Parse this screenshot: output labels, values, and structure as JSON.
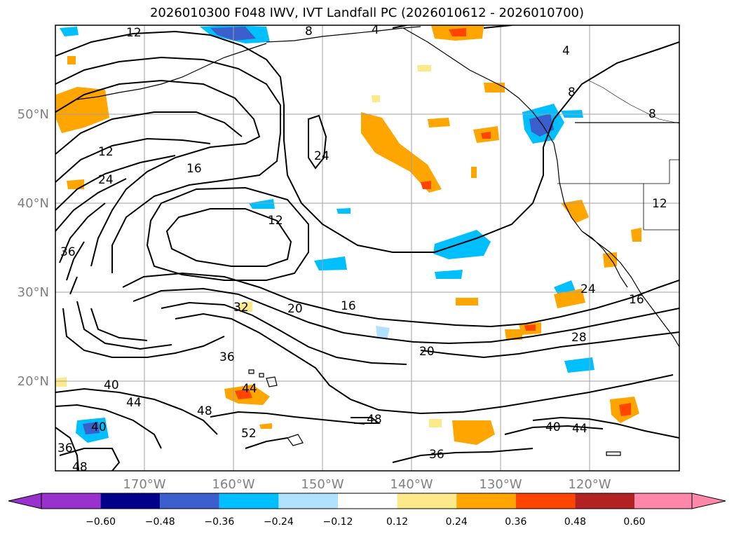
{
  "figure": {
    "title": "2026010300 F048 IWV, IVT Landfall PC (2026010612 - 2026010700)"
  },
  "axes": {
    "lon_labels": [
      "170°W",
      "160°W",
      "150°W",
      "140°W",
      "130°W",
      "120°W"
    ],
    "lat_labels": [
      "50°N",
      "40°N",
      "30°N",
      "20°N"
    ]
  },
  "colorbar": {
    "tick_labels": [
      "−0.60",
      "−0.48",
      "−0.36",
      "−0.24",
      "−0.12",
      "0.12",
      "0.24",
      "0.36",
      "0.48",
      "0.60"
    ],
    "colors": [
      "#9932cc",
      "#00008b",
      "#3a5fcd",
      "#00bfff",
      "#b0e2ff",
      "#ffffff",
      "#fce98a",
      "#ffa500",
      "#ff4500",
      "#b22222",
      "#ff88aa"
    ]
  },
  "contour_labels": [
    "12",
    "8",
    "4",
    "4",
    "8",
    "8",
    "12",
    "24",
    "16",
    "24",
    "12",
    "36",
    "32",
    "20",
    "16",
    "20",
    "28",
    "24",
    "16",
    "36",
    "40",
    "44",
    "44",
    "48",
    "52",
    "48",
    "40",
    "36",
    "48",
    "40",
    "44",
    "36",
    "12"
  ]
}
